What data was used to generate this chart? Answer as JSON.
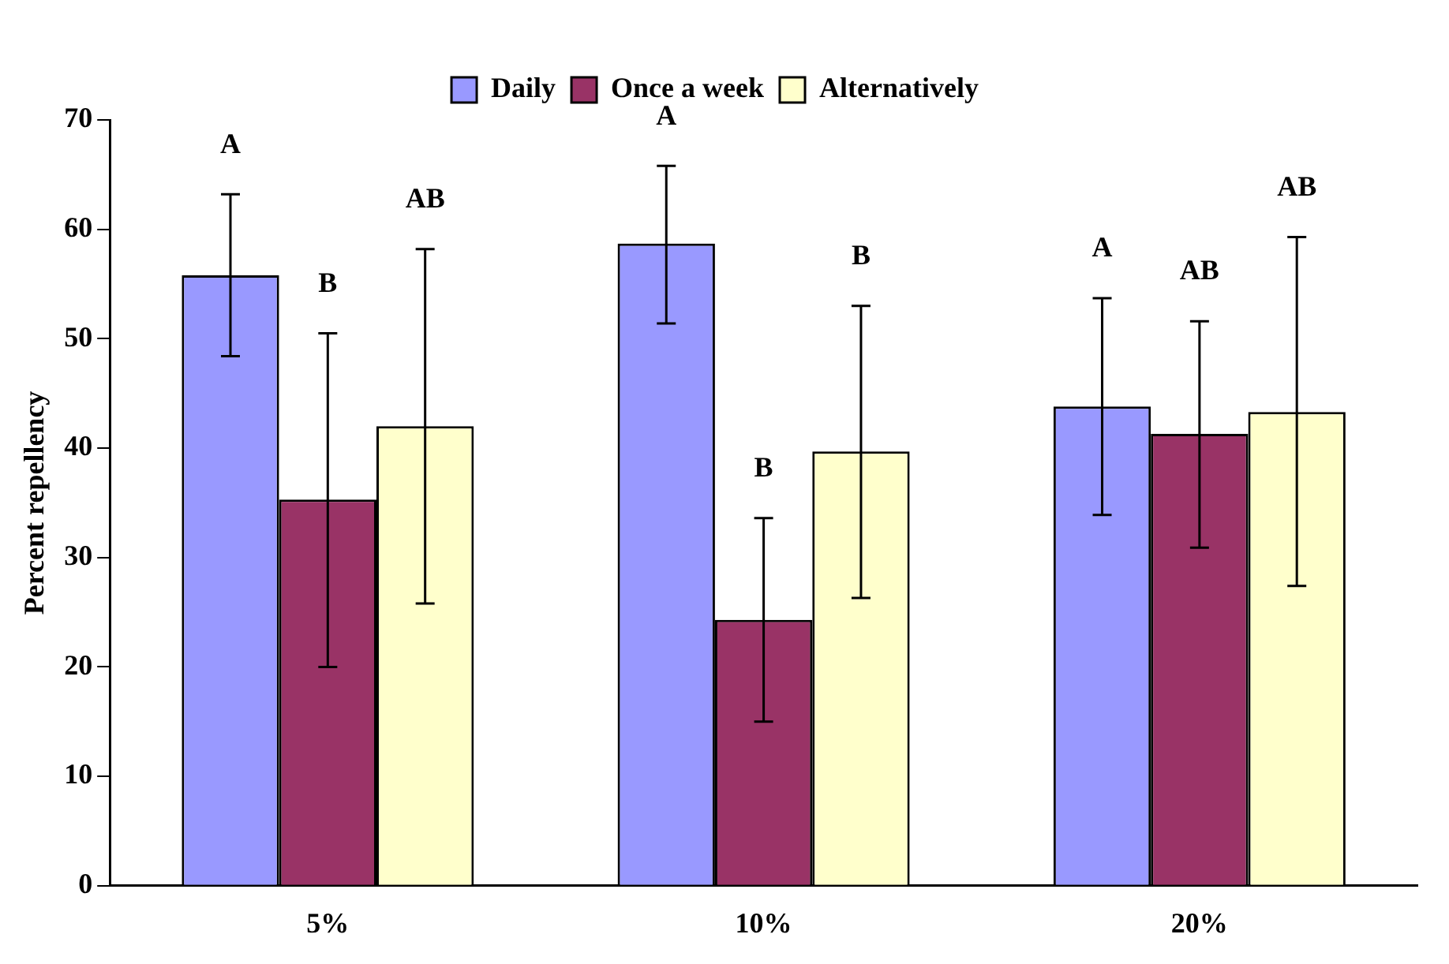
{
  "chart_data": {
    "type": "bar",
    "ylabel": "Percent repellency",
    "categories": [
      "5%",
      "10%",
      "20%"
    ],
    "series": [
      {
        "name": "Daily",
        "color": "#9999ff",
        "values": [
          55.8,
          58.7,
          43.8
        ],
        "errors": [
          [
            48.4,
            63.2
          ],
          [
            51.4,
            65.8
          ],
          [
            33.9,
            53.7
          ]
        ]
      },
      {
        "name": "Once a week",
        "color": "#993366",
        "values": [
          35.3,
          24.3,
          41.3
        ],
        "errors": [
          [
            20.0,
            50.5
          ],
          [
            15.0,
            33.6
          ],
          [
            30.9,
            51.6
          ]
        ]
      },
      {
        "name": "Alternatively",
        "color": "#ffffcc",
        "values": [
          42.0,
          39.7,
          43.3
        ],
        "errors": [
          [
            25.8,
            58.2
          ],
          [
            26.3,
            53.0
          ],
          [
            27.4,
            59.3
          ]
        ]
      }
    ],
    "annotations": [
      "A",
      "B",
      "AB",
      "A",
      "B",
      "B",
      "A",
      "AB",
      "AB"
    ],
    "ylim": [
      0,
      70
    ],
    "yticks": [
      0,
      10,
      20,
      30,
      40,
      50,
      60,
      70
    ],
    "grid": false,
    "legend": "top"
  }
}
